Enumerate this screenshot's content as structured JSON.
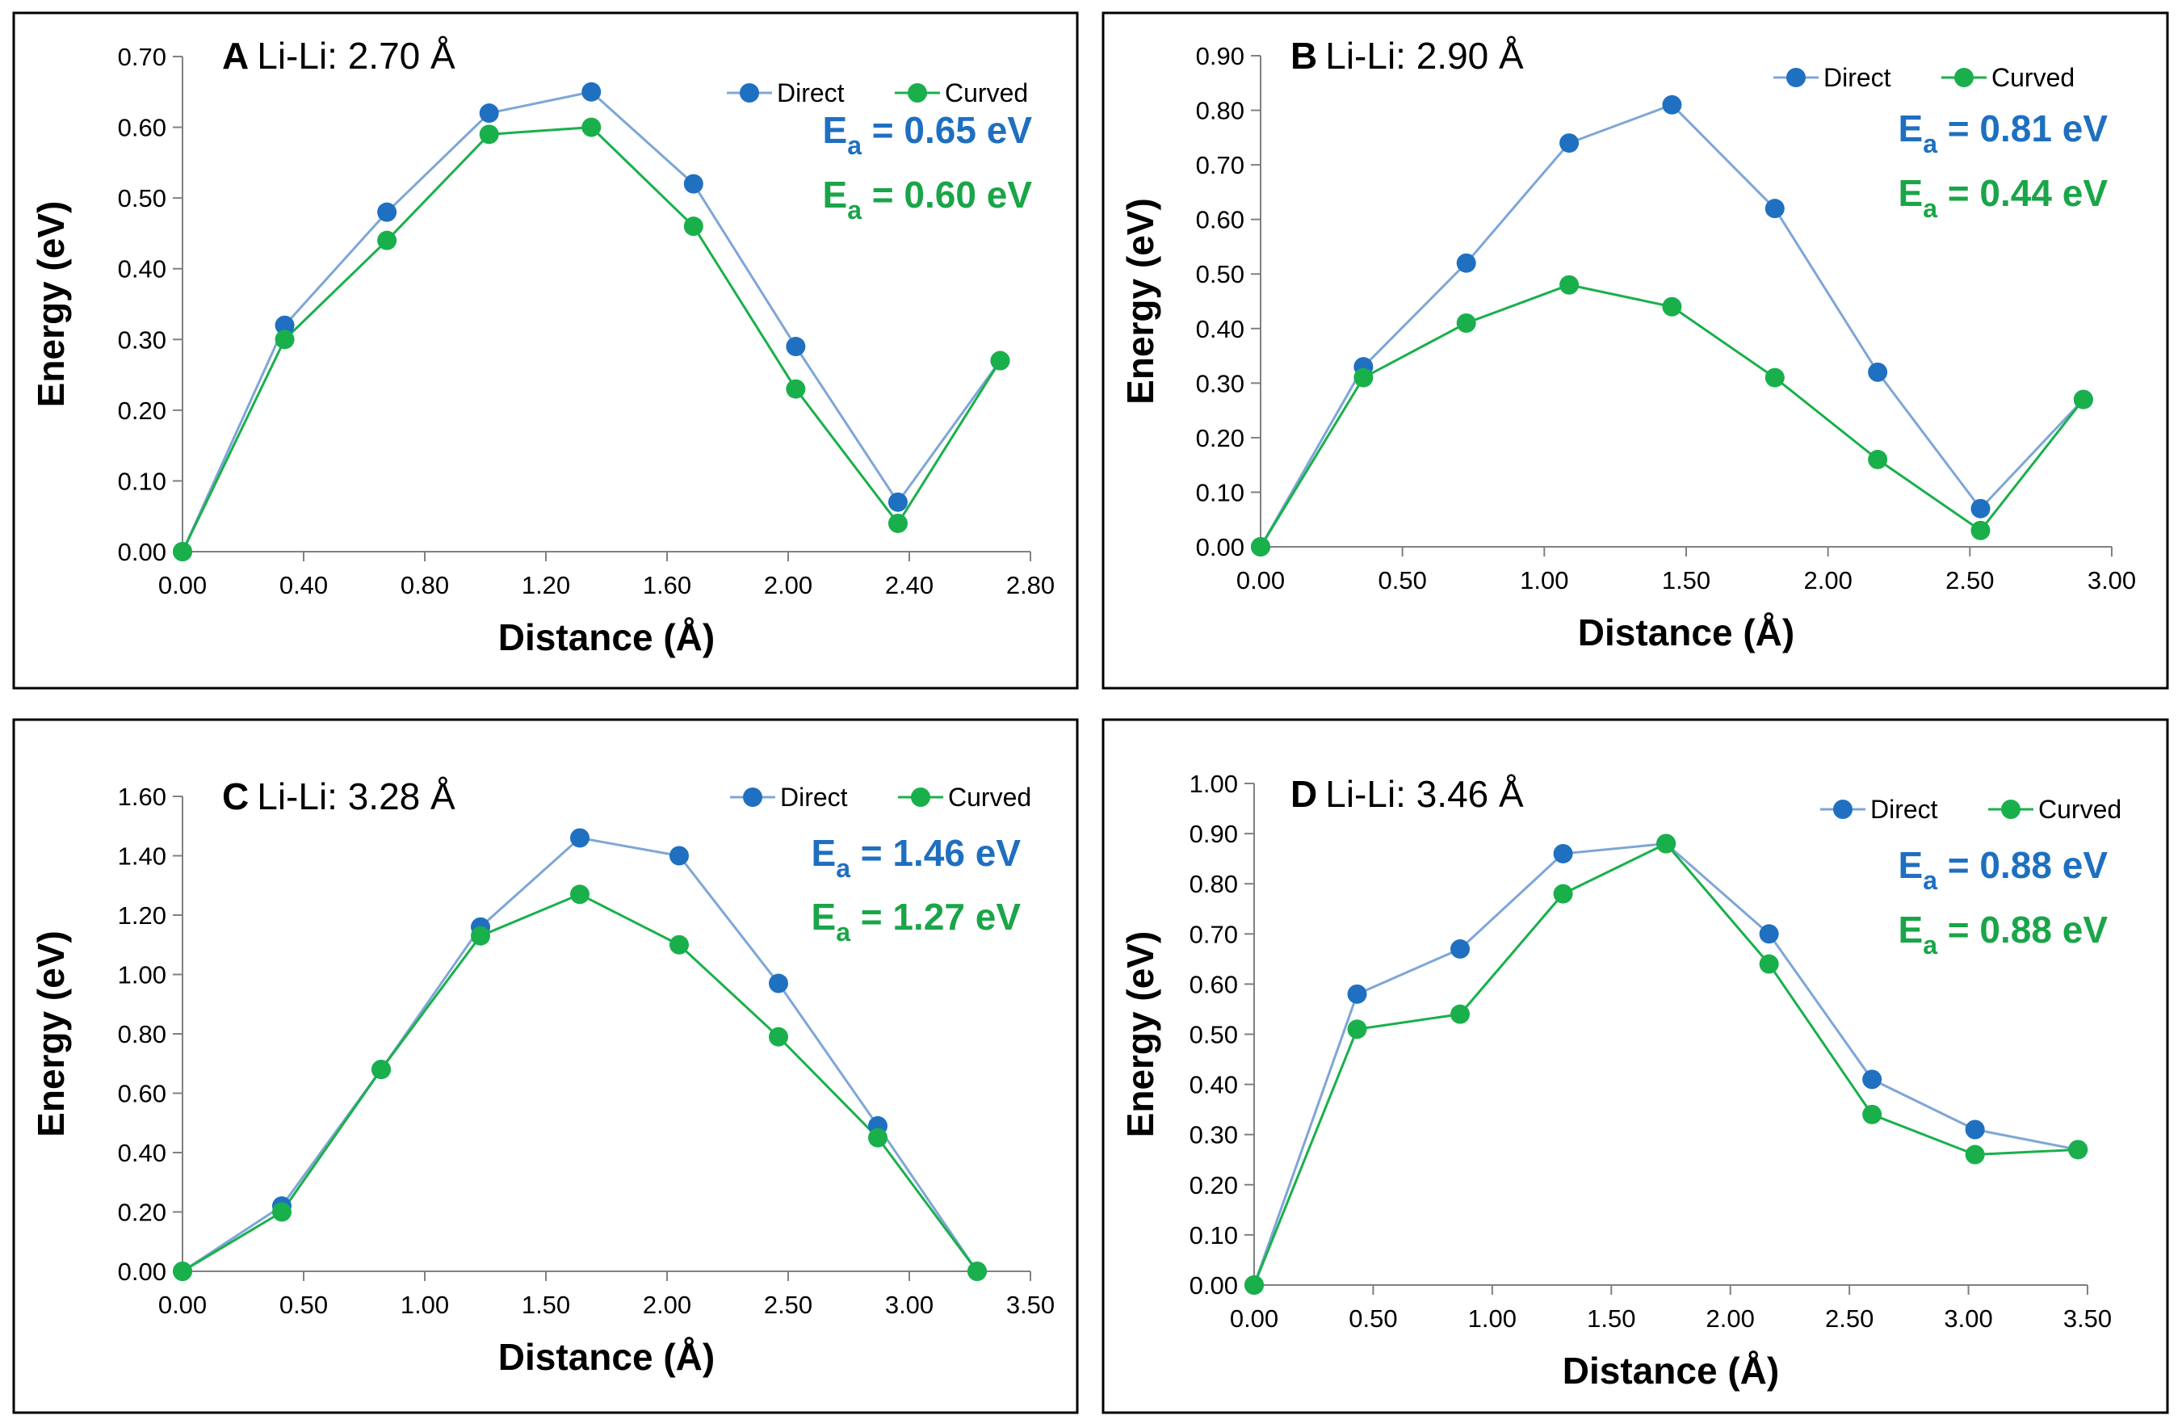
{
  "chart_data": [
    {
      "type": "line",
      "panel_letter": "A",
      "title": "Li-Li:  2.70 Å",
      "xlabel": "Distance (Å)",
      "ylabel": "Energy (eV)",
      "xlim": [
        0,
        2.8
      ],
      "ylim": [
        0,
        0.7
      ],
      "xticks": [
        "0.00",
        "0.40",
        "0.80",
        "1.20",
        "1.60",
        "2.00",
        "2.40",
        "2.80"
      ],
      "yticks": [
        "0.00",
        "0.10",
        "0.20",
        "0.30",
        "0.40",
        "0.50",
        "0.60",
        "0.70"
      ],
      "x": [
        0,
        0.3375,
        0.675,
        1.0125,
        1.35,
        1.6875,
        2.025,
        2.3625,
        2.7
      ],
      "series": [
        {
          "name": "Direct",
          "values": [
            0,
            0.32,
            0.48,
            0.62,
            0.65,
            0.52,
            0.29,
            0.07,
            0.27
          ]
        },
        {
          "name": "Curved",
          "values": [
            0,
            0.3,
            0.44,
            0.59,
            0.6,
            0.46,
            0.23,
            0.04,
            0.27
          ]
        }
      ],
      "legend": [
        "Direct",
        "Curved"
      ],
      "annotations": [
        {
          "prefix": "E",
          "sub": "a",
          "text": " = 0.65 eV",
          "series": "Direct"
        },
        {
          "prefix": "E",
          "sub": "a",
          "text": " = 0.60 eV",
          "series": "Curved"
        }
      ]
    },
    {
      "type": "line",
      "panel_letter": "B",
      "title": "Li-Li:  2.90 Å",
      "xlabel": "Distance (Å)",
      "ylabel": "Energy (eV)",
      "xlim": [
        0,
        3.0
      ],
      "ylim": [
        0,
        0.9
      ],
      "xticks": [
        "0.00",
        "0.50",
        "1.00",
        "1.50",
        "2.00",
        "2.50",
        "3.00"
      ],
      "yticks": [
        "0.00",
        "0.10",
        "0.20",
        "0.30",
        "0.40",
        "0.50",
        "0.60",
        "0.70",
        "0.80",
        "0.90"
      ],
      "x": [
        0,
        0.3625,
        0.725,
        1.0875,
        1.45,
        1.8125,
        2.175,
        2.5375,
        2.9
      ],
      "series": [
        {
          "name": "Direct",
          "values": [
            0,
            0.33,
            0.52,
            0.74,
            0.81,
            0.62,
            0.32,
            0.07,
            0.27
          ]
        },
        {
          "name": "Curved",
          "values": [
            0,
            0.31,
            0.41,
            0.48,
            0.44,
            0.31,
            0.16,
            0.03,
            0.27
          ]
        }
      ],
      "legend": [
        "Direct",
        "Curved"
      ],
      "annotations": [
        {
          "prefix": "E",
          "sub": "a",
          "text": " = 0.81 eV",
          "series": "Direct"
        },
        {
          "prefix": "E",
          "sub": "a",
          "text": " = 0.44 eV",
          "series": "Curved"
        }
      ]
    },
    {
      "type": "line",
      "panel_letter": "C",
      "title": "Li-Li:  3.28 Å",
      "xlabel": "Distance (Å)",
      "ylabel": "Energy (eV)",
      "xlim": [
        0,
        3.5
      ],
      "ylim": [
        0,
        1.6
      ],
      "xticks": [
        "0.00",
        "0.50",
        "1.00",
        "1.50",
        "2.00",
        "2.50",
        "3.00",
        "3.50"
      ],
      "yticks": [
        "0.00",
        "0.20",
        "0.40",
        "0.60",
        "0.80",
        "1.00",
        "1.20",
        "1.40",
        "1.60"
      ],
      "x": [
        0,
        0.41,
        0.82,
        1.23,
        1.64,
        2.05,
        2.46,
        2.87,
        3.28
      ],
      "series": [
        {
          "name": "Direct",
          "values": [
            0,
            0.22,
            0.68,
            1.16,
            1.46,
            1.4,
            0.97,
            0.49,
            0
          ]
        },
        {
          "name": "Curved",
          "values": [
            0,
            0.2,
            0.68,
            1.13,
            1.27,
            1.1,
            0.79,
            0.45,
            0
          ]
        }
      ],
      "legend": [
        "Direct",
        "Curved"
      ],
      "annotations": [
        {
          "prefix": "E",
          "sub": "a",
          "text": " = 1.46 eV",
          "series": "Direct"
        },
        {
          "prefix": "E",
          "sub": "a",
          "text": " = 1.27 eV",
          "series": "Curved"
        }
      ]
    },
    {
      "type": "line",
      "panel_letter": "D",
      "title": "Li-Li:  3.46 Å",
      "xlabel": "Distance (Å)",
      "ylabel": "Energy (eV)",
      "xlim": [
        0,
        3.5
      ],
      "ylim": [
        0,
        1.0
      ],
      "xticks": [
        "0.00",
        "0.50",
        "1.00",
        "1.50",
        "2.00",
        "2.50",
        "3.00",
        "3.50"
      ],
      "yticks": [
        "0.00",
        "0.10",
        "0.20",
        "0.30",
        "0.40",
        "0.50",
        "0.60",
        "0.70",
        "0.80",
        "0.90",
        "1.00"
      ],
      "x": [
        0,
        0.4325,
        0.865,
        1.2975,
        1.73,
        2.1625,
        2.595,
        3.0275,
        3.46
      ],
      "series": [
        {
          "name": "Direct",
          "values": [
            0,
            0.58,
            0.67,
            0.86,
            0.88,
            0.7,
            0.41,
            0.31,
            0.27
          ]
        },
        {
          "name": "Curved",
          "values": [
            0,
            0.51,
            0.54,
            0.78,
            0.88,
            0.64,
            0.34,
            0.26,
            0.27
          ]
        }
      ],
      "legend": [
        "Direct",
        "Curved"
      ],
      "annotations": [
        {
          "prefix": "E",
          "sub": "a",
          "text": " = 0.88 eV",
          "series": "Direct"
        },
        {
          "prefix": "E",
          "sub": "a",
          "text": " = 0.88 eV",
          "series": "Curved"
        }
      ]
    }
  ],
  "colors": {
    "direct_marker": "#1f70c1",
    "direct_line": "#7ea6d6",
    "curved": "#19b04b",
    "direct_text": "#1f6fc0",
    "curved_text": "#1aa548",
    "axis": "#808080",
    "frame": "#000000"
  }
}
